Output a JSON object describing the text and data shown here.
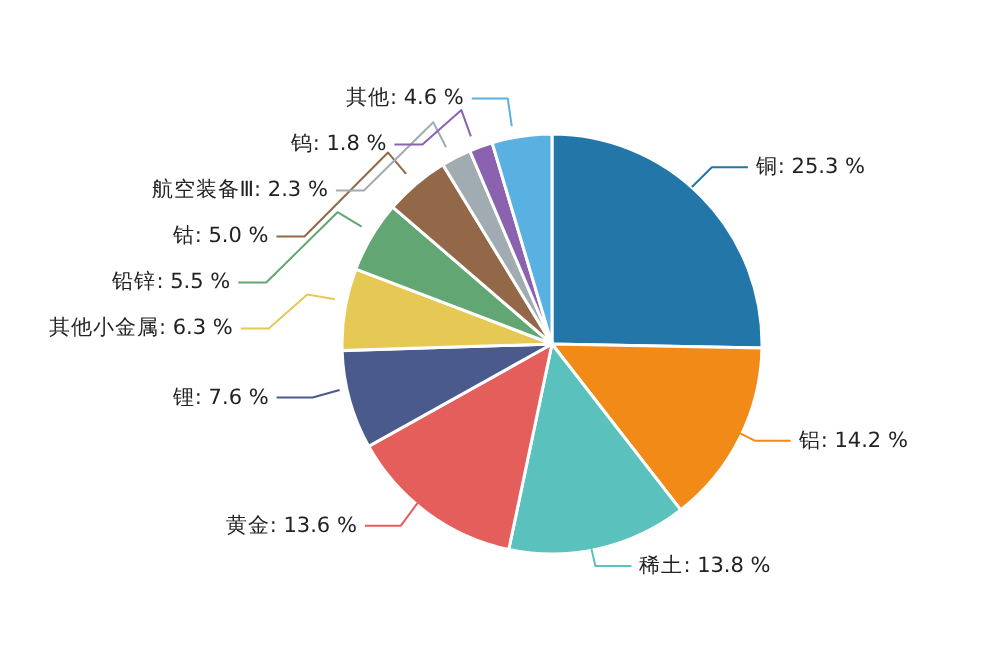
{
  "chart_data": {
    "type": "pie",
    "categories": [
      "铜",
      "铝",
      "稀土",
      "黄金",
      "锂",
      "其他小金属",
      "铅锌",
      "钴",
      "航空装备Ⅲ",
      "钨",
      "其他"
    ],
    "values": [
      25.3,
      14.2,
      13.8,
      13.6,
      7.6,
      6.3,
      5.5,
      5.0,
      2.3,
      1.8,
      4.6
    ],
    "colors": [
      "#2277a8",
      "#f28a17",
      "#5bc1bc",
      "#e45e5c",
      "#4a5a8d",
      "#e6c955",
      "#62a673",
      "#936849",
      "#a0acb2",
      "#8a62b0",
      "#58b1e0"
    ],
    "value_labels": [
      "25.3 %",
      "14.2 %",
      "13.8 %",
      "13.6 %",
      "7.6 %",
      "6.3 %",
      "5.5 %",
      "5.0 %",
      "2.3 %",
      "1.8 %",
      "4.6 %"
    ],
    "legend": false
  }
}
